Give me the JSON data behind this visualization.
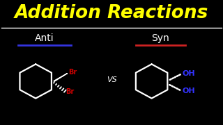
{
  "background_color": "#000000",
  "title": "Addition Reactions",
  "title_color": "#FFFF00",
  "title_fontsize": 19,
  "underline_color": "#FFFFFF",
  "anti_label": "Anti",
  "anti_label_color": "#FFFFFF",
  "anti_label_fontsize": 10,
  "anti_underline_color": "#3333DD",
  "syn_label": "Syn",
  "syn_label_color": "#FFFFFF",
  "syn_label_fontsize": 10,
  "syn_underline_color": "#CC2222",
  "vs_text": "VS",
  "vs_color": "#FFFFFF",
  "vs_fontsize": 8,
  "br_color": "#CC0000",
  "br_fontsize": 7,
  "oh_color": "#3333FF",
  "oh_fontsize": 8,
  "ring_color": "#FFFFFF",
  "ring_lw": 1.6
}
